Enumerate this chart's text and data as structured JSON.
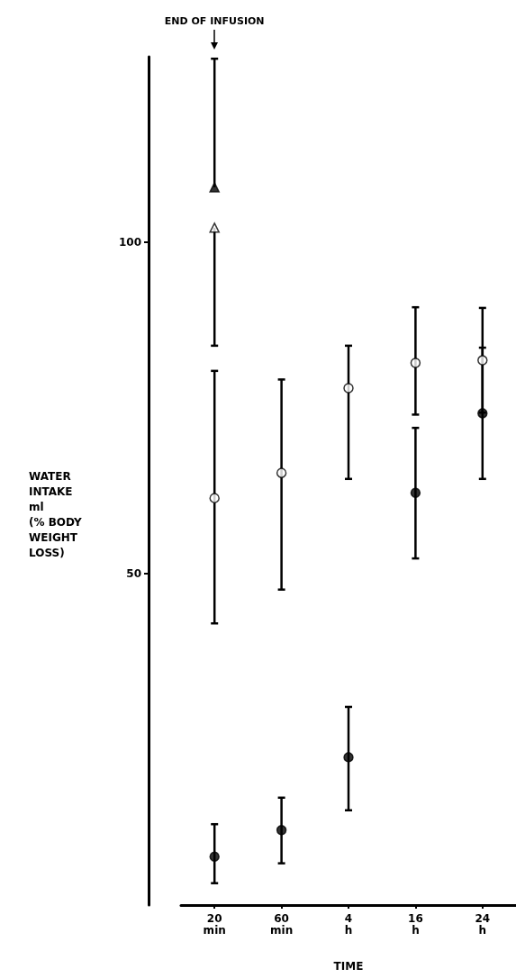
{
  "chart_data": {
    "type": "scatter",
    "xlabel": "TIME",
    "ylabel": "WATER\nINTAKE\nml\n(% BODY\nWEIGHT\nLOSS)",
    "categories": [
      "20 min",
      "60 min",
      "4 h",
      "16 h",
      "24 h"
    ],
    "series": [
      {
        "color": "#ffffff",
        "marker": "circle",
        "values": [
          61.4,
          65.2,
          78.0,
          81.8,
          82.2
        ],
        "errors": [
          [
            42.5,
            80.6
          ],
          [
            47.6,
            79.3
          ],
          [
            64.3,
            84.4
          ],
          [
            74.0,
            90.2
          ],
          [
            74.3,
            90.1
          ]
        ]
      },
      {
        "color": "#000000",
        "marker": "circle",
        "values": [
          7.3,
          11.3,
          22.3,
          62.2,
          74.2
        ],
        "errors": [
          [
            3.3,
            12.2
          ],
          [
            6.3,
            16.2
          ],
          [
            14.3,
            29.9
          ],
          [
            52.3,
            72.0
          ],
          [
            64.3,
            84.1
          ]
        ]
      },
      {
        "color": "#000000",
        "marker": "triangle",
        "values": [
          108.3,
          null,
          null,
          null,
          null
        ],
        "errors": [
          [
            108.3,
            127.7
          ],
          null,
          null,
          null,
          null
        ]
      },
      {
        "color": "#ffffff",
        "marker": "triangle",
        "values": [
          102.2,
          null,
          null,
          null,
          null
        ],
        "errors": [
          [
            84.4,
            102.2
          ],
          null,
          null,
          null,
          null
        ]
      }
    ],
    "ylim": [
      0,
      128
    ],
    "yticks": [
      50,
      100
    ],
    "grid": false,
    "annotations": [
      "END OF INFUSION"
    ]
  }
}
